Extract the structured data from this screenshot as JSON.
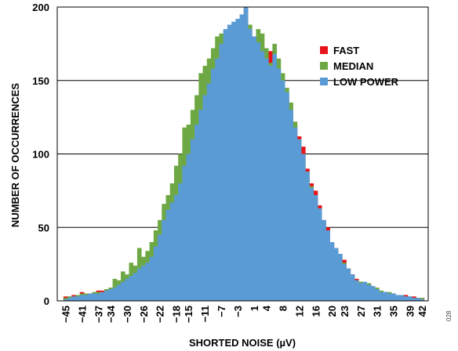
{
  "chart_data": {
    "type": "bar",
    "xlabel": "SHORTED NOISE (µV)",
    "ylabel": "NUMBER OF OCCURRENCES",
    "ylim": [
      0,
      200
    ],
    "yticks": [
      0,
      50,
      100,
      150,
      200
    ],
    "xlim": [
      -47,
      43.5
    ],
    "xticks": [
      -45,
      -41,
      -37,
      -34,
      -30,
      -26,
      -22,
      -18,
      -15,
      -11,
      -7,
      -3,
      1,
      4,
      8,
      12,
      16,
      20,
      23,
      27,
      31,
      35,
      39,
      42
    ],
    "grid": "horizontal",
    "legend_position": "top-right",
    "series": [
      {
        "name": "FAST",
        "color": "#e8141b",
        "x": [
          -45,
          -44,
          -43,
          -42,
          -41,
          -40,
          -39,
          -38,
          -37,
          -36,
          -35,
          -34,
          -33,
          -32,
          -31,
          -30,
          -29,
          -28,
          -27,
          -26,
          -25,
          -24,
          -23,
          -22,
          -21,
          -20,
          -19,
          -18,
          -17,
          -16,
          -15,
          -14,
          -13,
          -12,
          -11,
          -10,
          -9,
          -8,
          -7,
          -6,
          -5,
          -4,
          -3,
          -2,
          -1,
          0,
          1,
          2,
          3,
          4,
          5,
          6,
          7,
          8,
          9,
          10,
          11,
          12,
          13,
          14,
          15,
          16,
          17,
          18,
          19,
          20,
          21,
          22,
          23,
          24,
          25,
          26,
          27,
          28,
          29,
          30,
          31,
          32,
          33,
          34,
          35,
          36,
          37,
          38,
          39,
          40,
          41,
          42
        ],
        "values": [
          3,
          3,
          4,
          3,
          6,
          5,
          5,
          5,
          7,
          7,
          6,
          7,
          8,
          10,
          12,
          14,
          17,
          18,
          20,
          23,
          25,
          28,
          30,
          35,
          45,
          55,
          60,
          68,
          75,
          90,
          100,
          115,
          125,
          135,
          140,
          145,
          150,
          160,
          165,
          175,
          180,
          185,
          188,
          190,
          200,
          170,
          165,
          170,
          165,
          160,
          170,
          160,
          150,
          148,
          140,
          130,
          120,
          112,
          105,
          90,
          80,
          75,
          65,
          55,
          50,
          40,
          35,
          30,
          28,
          22,
          18,
          15,
          13,
          12,
          12,
          10,
          8,
          6,
          6,
          5,
          5,
          4,
          4,
          4,
          3,
          3,
          2,
          2
        ]
      },
      {
        "name": "MEDIAN",
        "color": "#6ea844",
        "x": [
          -45,
          -44,
          -43,
          -42,
          -41,
          -40,
          -39,
          -38,
          -37,
          -36,
          -35,
          -34,
          -33,
          -32,
          -31,
          -30,
          -29,
          -28,
          -27,
          -26,
          -25,
          -24,
          -23,
          -22,
          -21,
          -20,
          -19,
          -18,
          -17,
          -16,
          -15,
          -14,
          -13,
          -12,
          -11,
          -10,
          -9,
          -8,
          -7,
          -6,
          -5,
          -4,
          -3,
          -2,
          -1,
          0,
          1,
          2,
          3,
          4,
          5,
          6,
          7,
          8,
          9,
          10,
          11,
          12,
          13,
          14,
          15,
          16,
          17,
          18,
          19,
          20,
          21,
          22,
          23,
          24,
          25,
          26,
          27,
          28,
          29,
          30,
          31,
          32,
          33,
          34,
          35,
          36,
          37,
          38,
          39,
          40,
          41,
          42
        ],
        "values": [
          2,
          3,
          3,
          4,
          5,
          5,
          5,
          6,
          6,
          6,
          8,
          9,
          15,
          14,
          20,
          18,
          26,
          24,
          36,
          30,
          34,
          40,
          48,
          55,
          66,
          72,
          80,
          92,
          100,
          118,
          120,
          130,
          140,
          155,
          160,
          165,
          172,
          180,
          182,
          180,
          185,
          186,
          190,
          193,
          198,
          188,
          175,
          185,
          182,
          172,
          162,
          175,
          165,
          155,
          145,
          135,
          122,
          110,
          100,
          88,
          78,
          70,
          60,
          54,
          48,
          40,
          36,
          32,
          26,
          22,
          17,
          14,
          13,
          12,
          12,
          10,
          9,
          7,
          6,
          6,
          5,
          4,
          3,
          3,
          3,
          2,
          2,
          2
        ]
      },
      {
        "name": "LOW POWER",
        "color": "#5b9bd5",
        "x": [
          -45,
          -44,
          -43,
          -42,
          -41,
          -40,
          -39,
          -38,
          -37,
          -36,
          -35,
          -34,
          -33,
          -32,
          -31,
          -30,
          -29,
          -28,
          -27,
          -26,
          -25,
          -24,
          -23,
          -22,
          -21,
          -20,
          -19,
          -18,
          -17,
          -16,
          -15,
          -14,
          -13,
          -12,
          -11,
          -10,
          -9,
          -8,
          -7,
          -6,
          -5,
          -4,
          -3,
          -2,
          -1,
          0,
          1,
          2,
          3,
          4,
          5,
          6,
          7,
          8,
          9,
          10,
          11,
          12,
          13,
          14,
          15,
          16,
          17,
          18,
          19,
          20,
          21,
          22,
          23,
          24,
          25,
          26,
          27,
          28,
          29,
          30,
          31,
          32,
          33,
          34,
          35,
          36,
          37,
          38,
          39,
          40,
          41,
          42
        ],
        "values": [
          1,
          2,
          3,
          3,
          4,
          4,
          5,
          5,
          5,
          6,
          7,
          8,
          9,
          11,
          13,
          15,
          17,
          19,
          22,
          24,
          26,
          30,
          37,
          45,
          55,
          62,
          67,
          72,
          80,
          92,
          100,
          110,
          120,
          130,
          140,
          148,
          158,
          165,
          175,
          185,
          188,
          190,
          192,
          195,
          200,
          185,
          180,
          176,
          170,
          165,
          160,
          168,
          158,
          150,
          142,
          130,
          118,
          110,
          100,
          88,
          77,
          72,
          63,
          55,
          48,
          40,
          36,
          32,
          25,
          22,
          18,
          14,
          12,
          13,
          11,
          10,
          8,
          6,
          6,
          5,
          5,
          4,
          4,
          3,
          3,
          2,
          2,
          1
        ]
      }
    ]
  },
  "figure_id": "028"
}
